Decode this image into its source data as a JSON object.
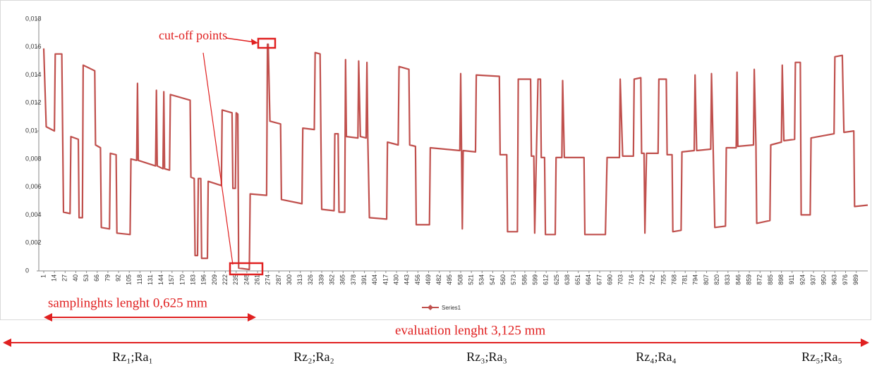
{
  "chart_data": {
    "type": "line",
    "x": [
      1,
      4,
      14,
      15,
      23,
      24,
      25,
      33,
      34,
      43,
      44,
      48,
      49,
      63,
      64,
      70,
      71,
      81,
      82,
      89,
      90,
      106,
      107,
      114,
      115,
      116,
      137,
      138,
      139,
      146,
      147,
      148,
      154,
      155,
      179,
      180,
      184,
      185,
      188,
      189,
      192,
      193,
      200,
      201,
      217,
      218,
      230,
      231,
      234,
      235,
      237,
      238,
      251,
      252,
      272,
      273,
      274,
      276,
      289,
      290,
      315,
      316,
      330,
      331,
      337,
      338,
      339,
      354,
      355,
      359,
      360,
      367,
      368,
      369,
      383,
      384,
      386,
      393,
      394,
      395,
      397,
      418,
      419,
      432,
      433,
      445,
      446,
      453,
      454,
      470,
      471,
      507,
      508,
      509,
      510,
      511,
      526,
      527,
      555,
      556,
      564,
      565,
      577,
      578,
      593,
      594,
      597,
      598,
      602,
      605,
      606,
      610,
      611,
      623,
      624,
      631,
      632,
      634,
      658,
      659,
      684,
      686,
      701,
      702,
      705,
      718,
      719,
      727,
      728,
      731,
      732,
      734,
      748,
      749,
      758,
      759,
      765,
      766,
      776,
      777,
      792,
      793,
      795,
      812,
      813,
      815,
      817,
      830,
      831,
      843,
      844,
      845,
      864,
      865,
      867,
      868,
      884,
      885,
      898,
      899,
      901,
      914,
      915,
      921,
      922,
      933,
      934,
      962,
      963,
      972,
      974,
      986,
      987,
      1003
    ],
    "series": [
      {
        "name": "Series1",
        "color": "#c0504d",
        "values": [
          0.0159,
          0.0103,
          0.01,
          0.0155,
          0.0155,
          0.0099,
          0.0042,
          0.0041,
          0.0096,
          0.0094,
          0.0038,
          0.0038,
          0.0147,
          0.0143,
          0.009,
          0.0088,
          0.0031,
          0.003,
          0.0084,
          0.0083,
          0.0027,
          0.0026,
          0.008,
          0.0079,
          0.0134,
          0.0079,
          0.0075,
          0.0129,
          0.0075,
          0.0073,
          0.0128,
          0.0073,
          0.0072,
          0.0126,
          0.0122,
          0.0067,
          0.0066,
          0.0011,
          0.0011,
          0.0066,
          0.0066,
          0.0009,
          0.0009,
          0.0064,
          0.0061,
          0.0115,
          0.0113,
          0.0059,
          0.0059,
          0.0113,
          0.0112,
          0.0002,
          0.0001,
          0.0055,
          0.0054,
          0.0162,
          0.0162,
          0.0107,
          0.0105,
          0.0051,
          0.0048,
          0.0102,
          0.0101,
          0.0156,
          0.0155,
          0.01,
          0.0044,
          0.0043,
          0.0098,
          0.0098,
          0.0042,
          0.0042,
          0.0151,
          0.0096,
          0.0095,
          0.015,
          0.0096,
          0.0095,
          0.0149,
          0.0096,
          0.0038,
          0.0037,
          0.0092,
          0.009,
          0.0146,
          0.0144,
          0.009,
          0.0089,
          0.0033,
          0.0033,
          0.0088,
          0.0086,
          0.0141,
          0.0086,
          0.003,
          0.0086,
          0.0085,
          0.014,
          0.0139,
          0.0083,
          0.0083,
          0.0028,
          0.0028,
          0.0137,
          0.0137,
          0.0082,
          0.0082,
          0.0027,
          0.0137,
          0.0137,
          0.0081,
          0.0081,
          0.0026,
          0.0026,
          0.0081,
          0.0081,
          0.0136,
          0.0081,
          0.0081,
          0.0026,
          0.0026,
          0.0081,
          0.0081,
          0.0137,
          0.0082,
          0.0082,
          0.0137,
          0.0138,
          0.0084,
          0.0084,
          0.0027,
          0.0084,
          0.0084,
          0.0137,
          0.0137,
          0.0083,
          0.0083,
          0.0028,
          0.0029,
          0.0085,
          0.0086,
          0.014,
          0.0086,
          0.0087,
          0.0141,
          0.0087,
          0.0031,
          0.0032,
          0.0088,
          0.0088,
          0.0142,
          0.0089,
          0.009,
          0.0144,
          0.009,
          0.0034,
          0.0036,
          0.009,
          0.0092,
          0.0147,
          0.0093,
          0.0094,
          0.0149,
          0.0149,
          0.004,
          0.004,
          0.0095,
          0.0098,
          0.0153,
          0.0154,
          0.0099,
          0.01,
          0.0046,
          0.0047
        ]
      }
    ],
    "xlim": [
      -5,
      1003
    ],
    "xticks": [
      1,
      14,
      27,
      40,
      53,
      66,
      79,
      92,
      105,
      118,
      131,
      144,
      157,
      170,
      183,
      196,
      209,
      222,
      235,
      248,
      261,
      274,
      287,
      300,
      313,
      326,
      339,
      352,
      365,
      378,
      391,
      404,
      417,
      430,
      443,
      456,
      469,
      482,
      495,
      508,
      521,
      534,
      547,
      560,
      573,
      586,
      599,
      612,
      625,
      638,
      651,
      664,
      677,
      690,
      703,
      716,
      729,
      742,
      755,
      768,
      781,
      794,
      807,
      820,
      833,
      846,
      859,
      872,
      885,
      898,
      911,
      924,
      937,
      950,
      963,
      976,
      989
    ],
    "ylim": [
      0,
      0.018
    ],
    "yticks": [
      0,
      {
        "value": 0.002,
        "label": "0,002"
      },
      {
        "value": 0.004,
        "label": "0,004"
      },
      {
        "value": 0.006,
        "label": "0,006"
      },
      {
        "value": 0.008,
        "label": "0,008"
      },
      {
        "value": 0.01,
        "label": "0,01"
      },
      {
        "value": 0.012,
        "label": "0,012"
      },
      {
        "value": 0.014,
        "label": "0,014"
      },
      {
        "value": 0.016,
        "label": "0,016"
      },
      {
        "value": 0.018,
        "label": "0,018"
      }
    ],
    "grid": false,
    "legend": "bottom",
    "annotations": {
      "cut_off": "cut-off points",
      "sampling": "samplinghts lenght 0,625 mm",
      "evaluation": "evaluation lenght 3,125 mm",
      "segments": [
        "Rz₁;Ra₁",
        "Rz₂;Ra₂",
        "Rz₃;Ra₃",
        "Rz₄;Ra₄",
        "Rz₅;Ra₅"
      ]
    }
  }
}
